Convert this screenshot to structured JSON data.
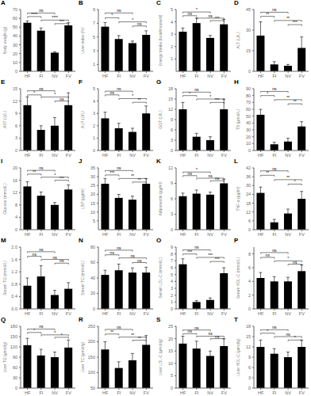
{
  "chart_data": [
    {
      "type": "bar",
      "title": "A",
      "ylabel": "Body weight (g)",
      "categories": [
        "HF",
        "FI",
        "NV",
        "FV"
      ],
      "values": [
        55,
        46,
        21,
        52
      ],
      "errors": [
        2,
        3,
        1,
        3
      ],
      "ylim": [
        0,
        70
      ],
      "yticks": [
        0,
        10,
        20,
        30,
        40,
        50,
        60,
        70
      ],
      "annotations": [
        {
          "from": "HF",
          "to": "FI",
          "label": "****",
          "y": 62
        },
        {
          "from": "HF",
          "to": "NV",
          "label": "ns",
          "y": 66
        },
        {
          "from": "FI",
          "to": "FV",
          "label": "****",
          "y": 58
        },
        {
          "from": "NV",
          "to": "FV",
          "label": "***",
          "y": 54
        }
      ]
    },
    {
      "type": "bar",
      "title": "B",
      "ylabel": "Liver index (%)",
      "categories": [
        "HF",
        "FI",
        "NV",
        "FV"
      ],
      "values": [
        6.5,
        4.7,
        4.1,
        5.3
      ],
      "errors": [
        0.6,
        0.5,
        0.3,
        0.6
      ],
      "ylim": [
        0,
        9
      ],
      "yticks": [
        1,
        3,
        5,
        7,
        9
      ],
      "annotations": [
        {
          "from": "HF",
          "to": "FI",
          "label": "*",
          "y": 7.8
        },
        {
          "from": "HF",
          "to": "NV",
          "label": "ns",
          "y": 8.5
        },
        {
          "from": "FI",
          "to": "FV",
          "label": "*",
          "y": 7.2
        },
        {
          "from": "NV",
          "to": "FV",
          "label": "ns",
          "y": 6.6
        }
      ]
    },
    {
      "type": "bar",
      "title": "C",
      "ylabel": "Energy intake (kcal/mouse/d)",
      "categories": [
        "HF",
        "FI",
        "NV",
        "FV"
      ],
      "values": [
        3.2,
        3.9,
        2.7,
        3.8
      ],
      "errors": [
        0.3,
        0.4,
        0.2,
        0.4
      ],
      "ylim": [
        0,
        5
      ],
      "yticks": [
        1,
        2,
        3,
        4,
        5
      ],
      "annotations": [
        {
          "from": "HF",
          "to": "FI",
          "label": "ns",
          "y": 4.5
        },
        {
          "from": "HF",
          "to": "NV",
          "label": "*",
          "y": 4.8
        },
        {
          "from": "FI",
          "to": "FV",
          "label": "ns",
          "y": 4.3
        },
        {
          "from": "NV",
          "to": "FV",
          "label": "***",
          "y": 4.1
        }
      ]
    },
    {
      "type": "bar",
      "title": "D",
      "ylabel": "ALT (U/L)",
      "categories": [
        "HF",
        "FI",
        "NV",
        "FV"
      ],
      "values": [
        26,
        5,
        4,
        17
      ],
      "errors": [
        10,
        2,
        1,
        8
      ],
      "ylim": [
        0,
        45
      ],
      "yticks": [
        0,
        15,
        30,
        45
      ],
      "annotations": [
        {
          "from": "HF",
          "to": "FI",
          "label": "**",
          "y": 40
        },
        {
          "from": "HF",
          "to": "NV",
          "label": "ns",
          "y": 43
        },
        {
          "from": "FI",
          "to": "FV",
          "label": "**",
          "y": 37
        },
        {
          "from": "NV",
          "to": "FV",
          "label": "***",
          "y": 34
        }
      ]
    },
    {
      "type": "bar",
      "title": "E",
      "ylabel": "AST (U/L)",
      "categories": [
        "HF",
        "FI",
        "NV",
        "FV"
      ],
      "values": [
        11,
        5,
        6,
        11
      ],
      "errors": [
        2,
        1,
        2,
        3
      ],
      "ylim": [
        0,
        15
      ],
      "yticks": [
        0,
        3,
        6,
        9,
        12,
        15
      ],
      "annotations": [
        {
          "from": "HF",
          "to": "FI",
          "label": "*",
          "y": 13.5
        },
        {
          "from": "HF",
          "to": "NV",
          "label": "ns",
          "y": 14.5
        },
        {
          "from": "FI",
          "to": "FV",
          "label": "*",
          "y": 13.0
        },
        {
          "from": "NV",
          "to": "FV",
          "label": "ns",
          "y": 12.0
        }
      ]
    },
    {
      "type": "bar",
      "title": "F",
      "ylabel": "ALP (U/L)",
      "categories": [
        "HF",
        "FI",
        "NV",
        "FV"
      ],
      "values": [
        2.6,
        1.8,
        1.5,
        3.0
      ],
      "errors": [
        0.5,
        0.4,
        0.3,
        0.6
      ],
      "ylim": [
        0,
        5
      ],
      "yticks": [
        0,
        1,
        2,
        3,
        4,
        5
      ],
      "annotations": [
        {
          "from": "HF",
          "to": "FI",
          "label": "ns",
          "y": 4.5
        },
        {
          "from": "HF",
          "to": "NV",
          "label": "ns",
          "y": 4.8
        },
        {
          "from": "FI",
          "to": "FV",
          "label": "*",
          "y": 4.2
        },
        {
          "from": "NV",
          "to": "FV",
          "label": "**",
          "y": 3.9
        }
      ]
    },
    {
      "type": "bar",
      "title": "G",
      "ylabel": "GGT (U/L)",
      "categories": [
        "HF",
        "FI",
        "NV",
        "FV"
      ],
      "values": [
        12,
        4,
        3,
        12
      ],
      "errors": [
        2,
        1,
        1,
        3
      ],
      "ylim": [
        0,
        18
      ],
      "yticks": [
        0,
        3,
        6,
        9,
        12,
        15,
        18
      ],
      "annotations": [
        {
          "from": "HF",
          "to": "FI",
          "label": "*",
          "y": 16
        },
        {
          "from": "HF",
          "to": "NV",
          "label": "ns",
          "y": 17
        },
        {
          "from": "FI",
          "to": "FV",
          "label": "*",
          "y": 15
        },
        {
          "from": "NV",
          "to": "FV",
          "label": "***",
          "y": 14
        }
      ]
    },
    {
      "type": "bar",
      "title": "H",
      "ylabel": "TB (μmol/L)",
      "categories": [
        "HF",
        "FI",
        "NV",
        "FV"
      ],
      "values": [
        52,
        9,
        13,
        35
      ],
      "errors": [
        8,
        3,
        5,
        7
      ],
      "ylim": [
        0,
        90
      ],
      "yticks": [
        0,
        10,
        20,
        30,
        40,
        50,
        60,
        70,
        80,
        90
      ],
      "annotations": [
        {
          "from": "HF",
          "to": "FI",
          "label": "*",
          "y": 80
        },
        {
          "from": "HF",
          "to": "NV",
          "label": "ns",
          "y": 86
        },
        {
          "from": "FI",
          "to": "FV",
          "label": "**",
          "y": 74
        },
        {
          "from": "NV",
          "to": "FV",
          "label": "**",
          "y": 68
        }
      ]
    },
    {
      "type": "bar",
      "title": "I",
      "ylabel": "Glucose (mmol/L)",
      "categories": [
        "HF",
        "FI",
        "NV",
        "FV"
      ],
      "values": [
        14,
        11,
        8,
        13
      ],
      "errors": [
        1.5,
        1.2,
        0.8,
        1.5
      ],
      "ylim": [
        0,
        20
      ],
      "yticks": [
        0,
        4,
        8,
        12,
        16,
        20
      ],
      "annotations": [
        {
          "from": "HF",
          "to": "FI",
          "label": "**",
          "y": 18
        },
        {
          "from": "HF",
          "to": "NV",
          "label": "ns",
          "y": 19.2
        },
        {
          "from": "FI",
          "to": "FV",
          "label": "*",
          "y": 17
        },
        {
          "from": "NV",
          "to": "FV",
          "label": "***",
          "y": 16
        }
      ]
    },
    {
      "type": "bar",
      "title": "J",
      "ylabel": "LBP (pg/ml)",
      "categories": [
        "HF",
        "FI",
        "NV",
        "FV"
      ],
      "values": [
        26,
        18,
        17,
        26
      ],
      "errors": [
        3,
        2,
        2,
        3
      ],
      "ylim": [
        0,
        35
      ],
      "yticks": [
        5,
        10,
        15,
        20,
        25,
        30,
        35
      ],
      "annotations": [
        {
          "from": "HF",
          "to": "FI",
          "label": "***",
          "y": 31
        },
        {
          "from": "HF",
          "to": "NV",
          "label": "ns",
          "y": 33.5
        },
        {
          "from": "FI",
          "to": "FV",
          "label": "**",
          "y": 29
        },
        {
          "from": "NV",
          "to": "FV",
          "label": "**",
          "y": 27
        }
      ]
    },
    {
      "type": "bar",
      "title": "K",
      "ylabel": "Adiponectin (pg/ml)",
      "categories": [
        "HF",
        "FI",
        "NV",
        "FV"
      ],
      "values": [
        6.5,
        7.0,
        6.8,
        9.0
      ],
      "errors": [
        0.6,
        0.7,
        0.5,
        0.8
      ],
      "ylim": [
        0,
        12
      ],
      "yticks": [
        0,
        3,
        6,
        9,
        12
      ],
      "annotations": [
        {
          "from": "HF",
          "to": "FI",
          "label": "ns",
          "y": 10.5
        },
        {
          "from": "HF",
          "to": "NV",
          "label": "*",
          "y": 11.2
        },
        {
          "from": "FI",
          "to": "FV",
          "label": "ns",
          "y": 10.0
        },
        {
          "from": "NV",
          "to": "FV",
          "label": "ns",
          "y": 9.5
        }
      ]
    },
    {
      "type": "bar",
      "title": "L",
      "ylabel": "TNF-α (pg/ml)",
      "categories": [
        "HF",
        "FI",
        "NV",
        "FV"
      ],
      "values": [
        25,
        5,
        11,
        21
      ],
      "errors": [
        4,
        2,
        3,
        5
      ],
      "ylim": [
        0,
        42
      ],
      "yticks": [
        0,
        6,
        12,
        18,
        24,
        30,
        36,
        42
      ],
      "annotations": [
        {
          "from": "HF",
          "to": "FI",
          "label": "**",
          "y": 37
        },
        {
          "from": "HF",
          "to": "NV",
          "label": "ns",
          "y": 40
        },
        {
          "from": "FI",
          "to": "FV",
          "label": "**",
          "y": 34
        },
        {
          "from": "NV",
          "to": "FV",
          "label": "*",
          "y": 31
        }
      ]
    },
    {
      "type": "bar",
      "title": "M",
      "ylabel": "Serum TG (mmol/L)",
      "categories": [
        "HF",
        "FI",
        "NV",
        "FV"
      ],
      "values": [
        0.75,
        1.05,
        0.45,
        0.65
      ],
      "errors": [
        0.25,
        0.35,
        0.15,
        0.2
      ],
      "ylim": [
        0,
        2
      ],
      "yticks": [
        {
          "value": 0,
          "label": "0.0"
        },
        0.4,
        0.8,
        1.2,
        1.6,
        {
          "value": 2,
          "label": "2.0"
        }
      ],
      "annotations": [
        {
          "from": "HF",
          "to": "FI",
          "label": "ns",
          "y": 1.7
        },
        {
          "from": "HF",
          "to": "NV",
          "label": "ns",
          "y": 1.85
        },
        {
          "from": "FI",
          "to": "FV",
          "label": "ns",
          "y": 1.6
        },
        {
          "from": "NV",
          "to": "FV",
          "label": "ns",
          "y": 1.48
        }
      ]
    },
    {
      "type": "bar",
      "title": "N",
      "ylabel": "Serum TC (mmol/L)",
      "categories": [
        "HF",
        "FI",
        "NV",
        "FV"
      ],
      "values": [
        44,
        50,
        47,
        47
      ],
      "errors": [
        6,
        8,
        6,
        7
      ],
      "ylim": [
        0,
        80
      ],
      "yticks": [
        0,
        20,
        40,
        60,
        80
      ],
      "annotations": [
        {
          "from": "HF",
          "to": "FI",
          "label": "ns",
          "y": 70
        },
        {
          "from": "HF",
          "to": "NV",
          "label": "ns",
          "y": 76
        },
        {
          "from": "FI",
          "to": "FV",
          "label": "ns",
          "y": 66
        },
        {
          "from": "NV",
          "to": "FV",
          "label": "ns",
          "y": 60
        }
      ]
    },
    {
      "type": "bar",
      "title": "O",
      "ylabel": "Serum LDL-C (mmol/L)",
      "categories": [
        "HF",
        "FI",
        "NV",
        "FV"
      ],
      "values": [
        6.5,
        1.0,
        1.3,
        5.2
      ],
      "errors": [
        0.8,
        0.2,
        0.3,
        0.8
      ],
      "ylim": [
        0,
        9
      ],
      "yticks": [
        0,
        1,
        2,
        3,
        4,
        5,
        6,
        7,
        8,
        9
      ],
      "annotations": [
        {
          "from": "HF",
          "to": "FI",
          "label": "***",
          "y": 8.0
        },
        {
          "from": "HF",
          "to": "NV",
          "label": "ns",
          "y": 8.6
        },
        {
          "from": "FI",
          "to": "FV",
          "label": "***",
          "y": 7.5
        },
        {
          "from": "NV",
          "to": "FV",
          "label": "***",
          "y": 6.9
        }
      ]
    },
    {
      "type": "bar",
      "title": "P",
      "ylabel": "Serum HDL-C (mmol/L)",
      "categories": [
        "HF",
        "FI",
        "NV",
        "FV"
      ],
      "values": [
        4.5,
        4.0,
        4.0,
        5.5
      ],
      "errors": [
        0.8,
        0.7,
        0.6,
        0.9
      ],
      "ylim": [
        0,
        9
      ],
      "yticks": [
        0,
        2,
        4,
        6,
        8
      ],
      "annotations": [
        {
          "from": "HF",
          "to": "FI",
          "label": "ns",
          "y": 7.5
        },
        {
          "from": "HF",
          "to": "NV",
          "label": "ns",
          "y": 8.2
        },
        {
          "from": "FI",
          "to": "FV",
          "label": "*",
          "y": 7.0
        },
        {
          "from": "NV",
          "to": "FV",
          "label": "ns",
          "y": 6.5
        }
      ]
    },
    {
      "type": "bar",
      "title": "Q",
      "ylabel": "Liver TG (μmol/g)",
      "categories": [
        "HF",
        "FI",
        "NV",
        "FV"
      ],
      "values": [
        125,
        95,
        90,
        118
      ],
      "errors": [
        20,
        18,
        15,
        22
      ],
      "ylim": [
        0,
        180
      ],
      "yticks": [
        0,
        30,
        60,
        90,
        120,
        150,
        180
      ],
      "annotations": [
        {
          "from": "HF",
          "to": "FI",
          "label": "*",
          "y": 162
        },
        {
          "from": "HF",
          "to": "NV",
          "label": "ns",
          "y": 172
        },
        {
          "from": "FI",
          "to": "FV",
          "label": "*",
          "y": 155
        },
        {
          "from": "NV",
          "to": "FV",
          "label": "*",
          "y": 148
        }
      ]
    },
    {
      "type": "bar",
      "title": "R",
      "ylabel": "Liver TC (μmol/g)",
      "categories": [
        "HF",
        "FI",
        "NV",
        "FV"
      ],
      "values": [
        175,
        115,
        140,
        190
      ],
      "errors": [
        25,
        20,
        22,
        30
      ],
      "ylim": [
        50,
        250
      ],
      "yticks": [
        50,
        100,
        150,
        200,
        250
      ],
      "annotations": [
        {
          "from": "HF",
          "to": "FI",
          "label": "**",
          "y": 225
        },
        {
          "from": "HF",
          "to": "NV",
          "label": "ns",
          "y": 240
        },
        {
          "from": "FI",
          "to": "FV",
          "label": "**",
          "y": 215
        },
        {
          "from": "NV",
          "to": "FV",
          "label": "**",
          "y": 205
        }
      ]
    },
    {
      "type": "bar",
      "title": "S",
      "ylabel": "Liver LDL-C (μmol/g)",
      "categories": [
        "HF",
        "FI",
        "NV",
        "FV"
      ],
      "values": [
        18,
        16,
        13,
        17
      ],
      "errors": [
        3,
        3,
        2,
        3
      ],
      "ylim": [
        0,
        25
      ],
      "yticks": [
        0,
        5,
        10,
        15,
        20,
        25
      ],
      "annotations": [
        {
          "from": "HF",
          "to": "FI",
          "label": "ns",
          "y": 22
        },
        {
          "from": "HF",
          "to": "NV",
          "label": "ns",
          "y": 23.5
        },
        {
          "from": "FI",
          "to": "FV",
          "label": "ns",
          "y": 21
        },
        {
          "from": "NV",
          "to": "FV",
          "label": "ns",
          "y": 20
        }
      ]
    },
    {
      "type": "bar",
      "title": "T",
      "ylabel": "Liver HDL-C (μmol/g)",
      "categories": [
        "HF",
        "FI",
        "NV",
        "FV"
      ],
      "values": [
        12,
        10,
        9,
        12
      ],
      "errors": [
        2,
        1.5,
        1.5,
        2
      ],
      "ylim": [
        0,
        18
      ],
      "yticks": [
        0,
        3,
        6,
        9,
        12,
        15,
        18
      ],
      "annotations": [
        {
          "from": "HF",
          "to": "FI",
          "label": "*",
          "y": 16
        },
        {
          "from": "HF",
          "to": "NV",
          "label": "ns",
          "y": 17
        },
        {
          "from": "FI",
          "to": "FV",
          "label": "ns",
          "y": 15
        },
        {
          "from": "NV",
          "to": "FV",
          "label": "*",
          "y": 14
        }
      ]
    }
  ]
}
